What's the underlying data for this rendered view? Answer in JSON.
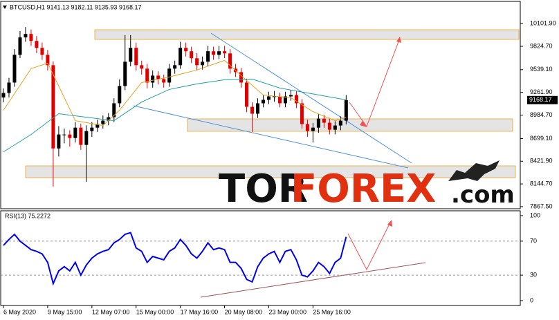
{
  "chart_data": [
    {
      "type": "candlestick",
      "title": "BTCUSD,H1  9141.13 9182.11 9135.93 9168.17",
      "open": [
        9200,
        9255,
        9382,
        9721,
        9933,
        9975,
        9890,
        9806,
        9721,
        9594,
        8578,
        8748,
        8748,
        8705,
        8832,
        8621,
        8790,
        8832,
        8875,
        8917,
        8959,
        9129,
        9340,
        9636,
        9806,
        9594,
        9552,
        9382,
        9467,
        9425,
        9382,
        9552,
        9594,
        9806,
        9764,
        9679,
        9594,
        9636,
        9764,
        9721,
        9764,
        9738,
        9552,
        9509,
        9382,
        9086,
        9002,
        9129,
        9171,
        9213,
        9213,
        9129,
        9213,
        9230,
        9129,
        8875,
        8790,
        8832,
        8942,
        8892,
        8807,
        8858,
        8917
      ],
      "high": [
        9310,
        9440,
        9790,
        10010,
        10060,
        10030,
        9950,
        9870,
        9780,
        9640,
        8850,
        8820,
        8800,
        8900,
        8880,
        8860,
        8900,
        8930,
        8980,
        9010,
        9190,
        9420,
        9960,
        9960,
        9870,
        9650,
        9610,
        9530,
        9520,
        9480,
        9610,
        9650,
        9880,
        9870,
        9820,
        9740,
        9700,
        9830,
        9820,
        9830,
        9830,
        9790,
        9610,
        9560,
        9430,
        9140,
        9190,
        9230,
        9270,
        9280,
        9260,
        9270,
        9290,
        9280,
        9180,
        8930,
        8890,
        9000,
        8990,
        8950,
        8910,
        8970,
        9230
      ],
      "low": [
        9140,
        9200,
        9330,
        9680,
        9880,
        9830,
        9740,
        9660,
        9530,
        8113,
        8480,
        8640,
        8600,
        8650,
        8560,
        8170,
        8720,
        8780,
        8820,
        8860,
        8900,
        9080,
        9290,
        9580,
        9530,
        9480,
        9310,
        9320,
        9360,
        9320,
        9330,
        9490,
        9550,
        9700,
        9620,
        9530,
        9540,
        9580,
        9660,
        9670,
        9680,
        9490,
        9450,
        9320,
        9020,
        8780,
        8950,
        9080,
        9120,
        9150,
        9080,
        9080,
        9160,
        9070,
        8820,
        8720,
        8650,
        8770,
        8830,
        8750,
        8750,
        8800,
        8870
      ],
      "close": [
        9255,
        9382,
        9721,
        9933,
        9975,
        9890,
        9806,
        9721,
        9594,
        8578,
        8748,
        8748,
        8705,
        8832,
        8621,
        8790,
        8832,
        8875,
        8917,
        8959,
        9129,
        9340,
        9636,
        9806,
        9594,
        9552,
        9382,
        9467,
        9425,
        9382,
        9552,
        9594,
        9806,
        9764,
        9679,
        9594,
        9636,
        9764,
        9721,
        9764,
        9738,
        9552,
        9509,
        9382,
        9086,
        9002,
        9129,
        9171,
        9213,
        9213,
        9129,
        9213,
        9230,
        9129,
        8875,
        8790,
        8832,
        8942,
        8892,
        8807,
        8858,
        8917,
        9168
      ],
      "up_color": "#000000",
      "down_color": "#e00000",
      "series": [
        {
          "color": "#e8a020",
          "x": [
            0,
            5,
            8,
            10,
            13,
            18,
            21,
            25,
            30,
            35,
            40,
            43,
            47,
            52,
            56,
            60,
            62
          ],
          "values": [
            9044,
            9552,
            9619,
            9340,
            8917,
            8858,
            9044,
            9382,
            9450,
            9535,
            9653,
            9467,
            9230,
            9196,
            9027,
            8917,
            8959
          ]
        },
        {
          "color": "#20a0a0",
          "x": [
            0,
            5,
            10,
            15,
            20,
            25,
            30,
            35,
            40,
            45,
            50,
            55,
            62
          ],
          "values": [
            8536,
            8748,
            9002,
            8959,
            8917,
            9145,
            9298,
            9366,
            9416,
            9425,
            9315,
            9255,
            9171
          ]
        }
      ],
      "last_price": {
        "value": 9168.17,
        "label": "9168.17"
      },
      "xlim": [
        -0.5,
        93.5
      ],
      "ylim": [
        7842,
        10373
      ],
      "yticks": [
        {
          "value": 10101.9,
          "label": "10101.90"
        },
        {
          "value": 9824.7,
          "label": "9824.70"
        },
        {
          "value": 9539.1,
          "label": "9539.10"
        },
        {
          "value": 9261.9,
          "label": "9261.90"
        },
        {
          "value": 8984.7,
          "label": "8984.70"
        },
        {
          "value": 8699.1,
          "label": "8699.10"
        },
        {
          "value": 8421.9,
          "label": "8421.90"
        },
        {
          "value": 8144.7,
          "label": "8144.70"
        },
        {
          "value": 7867.5,
          "label": "7867.50"
        }
      ],
      "watermark": [
        "TOR",
        "FOREX",
        ".com"
      ]
    },
    {
      "type": "line",
      "title": "RSI(13) 75.2272",
      "values": [
        65,
        72,
        78,
        70,
        65,
        60,
        58,
        55,
        45,
        20,
        35,
        40,
        35,
        45,
        30,
        42,
        50,
        55,
        58,
        60,
        68,
        72,
        78,
        80,
        62,
        58,
        45,
        52,
        50,
        48,
        58,
        62,
        72,
        65,
        55,
        50,
        58,
        68,
        60,
        62,
        60,
        45,
        45,
        38,
        25,
        22,
        40,
        50,
        55,
        58,
        45,
        58,
        60,
        48,
        30,
        28,
        35,
        45,
        40,
        32,
        45,
        50,
        75
      ],
      "color": "#0000ee",
      "xlim": [
        -0.5,
        93.5
      ],
      "ylim": [
        -5.7,
        105.7
      ],
      "yticks": [
        100,
        70,
        30,
        0
      ],
      "levels": [
        70,
        30
      ],
      "xticks": [
        {
          "value": 0,
          "label": "6 May 2020"
        },
        {
          "value": 8,
          "label": "9 May 15:00"
        },
        {
          "value": 16,
          "label": "12 May 07:00"
        },
        {
          "value": 24,
          "label": "15 May 00:00"
        },
        {
          "value": 32,
          "label": "17 May 16:00"
        },
        {
          "value": 40,
          "label": "20 May 08:00"
        },
        {
          "value": 48,
          "label": "23 May 00:00"
        },
        {
          "value": 56,
          "label": "25 May 16:00"
        }
      ]
    }
  ]
}
